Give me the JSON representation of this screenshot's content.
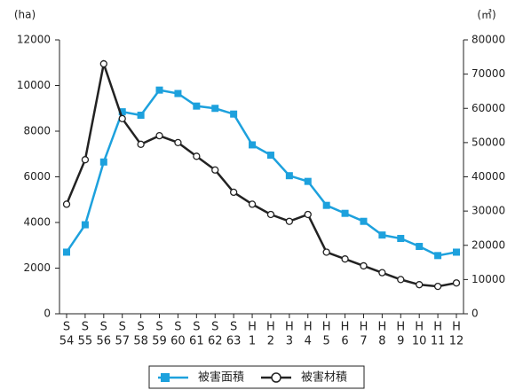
{
  "chart_data": {
    "type": "line",
    "y_unit": "(ha)",
    "y2_unit": "(㎥)",
    "categories": [
      [
        "S",
        "54"
      ],
      [
        "S",
        "55"
      ],
      [
        "S",
        "56"
      ],
      [
        "S",
        "57"
      ],
      [
        "S",
        "58"
      ],
      [
        "S",
        "59"
      ],
      [
        "S",
        "60"
      ],
      [
        "S",
        "61"
      ],
      [
        "S",
        "62"
      ],
      [
        "S",
        "63"
      ],
      [
        "H",
        "1"
      ],
      [
        "H",
        "2"
      ],
      [
        "H",
        "3"
      ],
      [
        "H",
        "4"
      ],
      [
        "H",
        "5"
      ],
      [
        "H",
        "6"
      ],
      [
        "H",
        "7"
      ],
      [
        "H",
        "8"
      ],
      [
        "H",
        "9"
      ],
      [
        "H",
        "10"
      ],
      [
        "H",
        "11"
      ],
      [
        "H",
        "12"
      ]
    ],
    "series": [
      {
        "name": "被害面積",
        "color": "#1da1dd",
        "marker": "square",
        "values": [
          2700,
          3900,
          6650,
          8850,
          8700,
          9800,
          9650,
          9100,
          9000,
          8750,
          7400,
          6950,
          6050,
          5800,
          4750,
          4400,
          4050,
          3450,
          3300,
          2950,
          2550,
          2700
        ]
      },
      {
        "name": "被害材積",
        "color": "#222222",
        "marker": "circle",
        "axis": "y2",
        "values": [
          32000,
          45000,
          73000,
          57000,
          49500,
          52000,
          50000,
          46000,
          42000,
          35500,
          32000,
          29000,
          27000,
          29000,
          18000,
          16000,
          14000,
          12000,
          10000,
          8500,
          8000,
          9000
        ]
      }
    ],
    "ylim": [
      0,
      12000
    ],
    "yticks": [
      0,
      2000,
      4000,
      6000,
      8000,
      10000,
      12000
    ],
    "y2lim": [
      0,
      80000
    ],
    "y2ticks": [
      0,
      10000,
      20000,
      30000,
      40000,
      50000,
      60000,
      70000,
      80000
    ],
    "grid": false,
    "legend": "bottom"
  }
}
